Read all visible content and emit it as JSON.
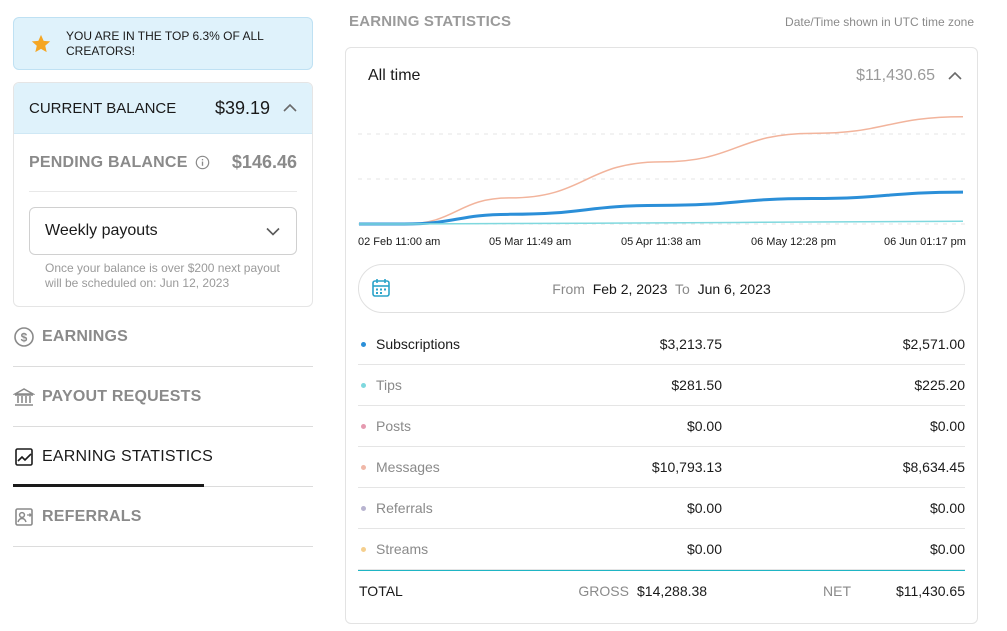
{
  "banner": {
    "text": "YOU ARE IN THE TOP 6.3% OF ALL CREATORS!"
  },
  "balance": {
    "current_label": "CURRENT BALANCE",
    "current_amount": "$39.19",
    "pending_label": "PENDING BALANCE",
    "pending_amount": "$146.46",
    "payout_option": "Weekly payouts",
    "payout_note": "Once your balance is over $200 next payout will be scheduled on: Jun 12, 2023"
  },
  "nav": {
    "items": [
      {
        "label": "EARNINGS",
        "icon": "dollar-circle-icon"
      },
      {
        "label": "PAYOUT REQUESTS",
        "icon": "bank-icon"
      },
      {
        "label": "EARNING STATISTICS",
        "icon": "chart-line-icon",
        "active": true
      },
      {
        "label": "REFERRALS",
        "icon": "referral-icon"
      }
    ]
  },
  "stats": {
    "title": "EARNING STATISTICS",
    "timezone_note": "Date/Time shown in UTC time zone",
    "period_label": "All time",
    "period_total": "$11,430.65",
    "from_label": "From",
    "from_date": "Feb 2, 2023",
    "to_label": "To",
    "to_date": "Jun 6, 2023",
    "rows": [
      {
        "name": "Subscriptions",
        "gross": "$3,213.75",
        "net": "$2,571.00",
        "color": "#2b8fd8"
      },
      {
        "name": "Tips",
        "gross": "$281.50",
        "net": "$225.20",
        "color": "#7fd8de"
      },
      {
        "name": "Posts",
        "gross": "$0.00",
        "net": "$0.00",
        "color": "#e59ab0"
      },
      {
        "name": "Messages",
        "gross": "$10,793.13",
        "net": "$8,634.45",
        "color": "#f0b8a8"
      },
      {
        "name": "Referrals",
        "gross": "$0.00",
        "net": "$0.00",
        "color": "#b8b4d0"
      },
      {
        "name": "Streams",
        "gross": "$0.00",
        "net": "$0.00",
        "color": "#f5cf8e"
      }
    ],
    "total": {
      "label": "TOTAL",
      "gross_label": "GROSS",
      "gross": "$14,288.38",
      "net_label": "NET",
      "net": "$11,430.65"
    }
  },
  "chart_data": {
    "type": "line",
    "x": [
      "02 Feb 11:00 am",
      "05 Mar 11:49 am",
      "05 Apr 11:38 am",
      "06 May 12:28 pm",
      "06 Jun 01:17 pm"
    ],
    "series": [
      {
        "name": "Messages",
        "color": "#f2b49c",
        "values": [
          0,
          2100,
          5000,
          7300,
          8634.45
        ]
      },
      {
        "name": "Subscriptions",
        "color": "#2b8fd8",
        "values": [
          0,
          780,
          1500,
          2050,
          2571
        ]
      },
      {
        "name": "Tips",
        "color": "#7fd8de",
        "values": [
          0,
          40,
          90,
          160,
          225.2
        ]
      }
    ],
    "ylim": [
      0,
      9500
    ]
  }
}
